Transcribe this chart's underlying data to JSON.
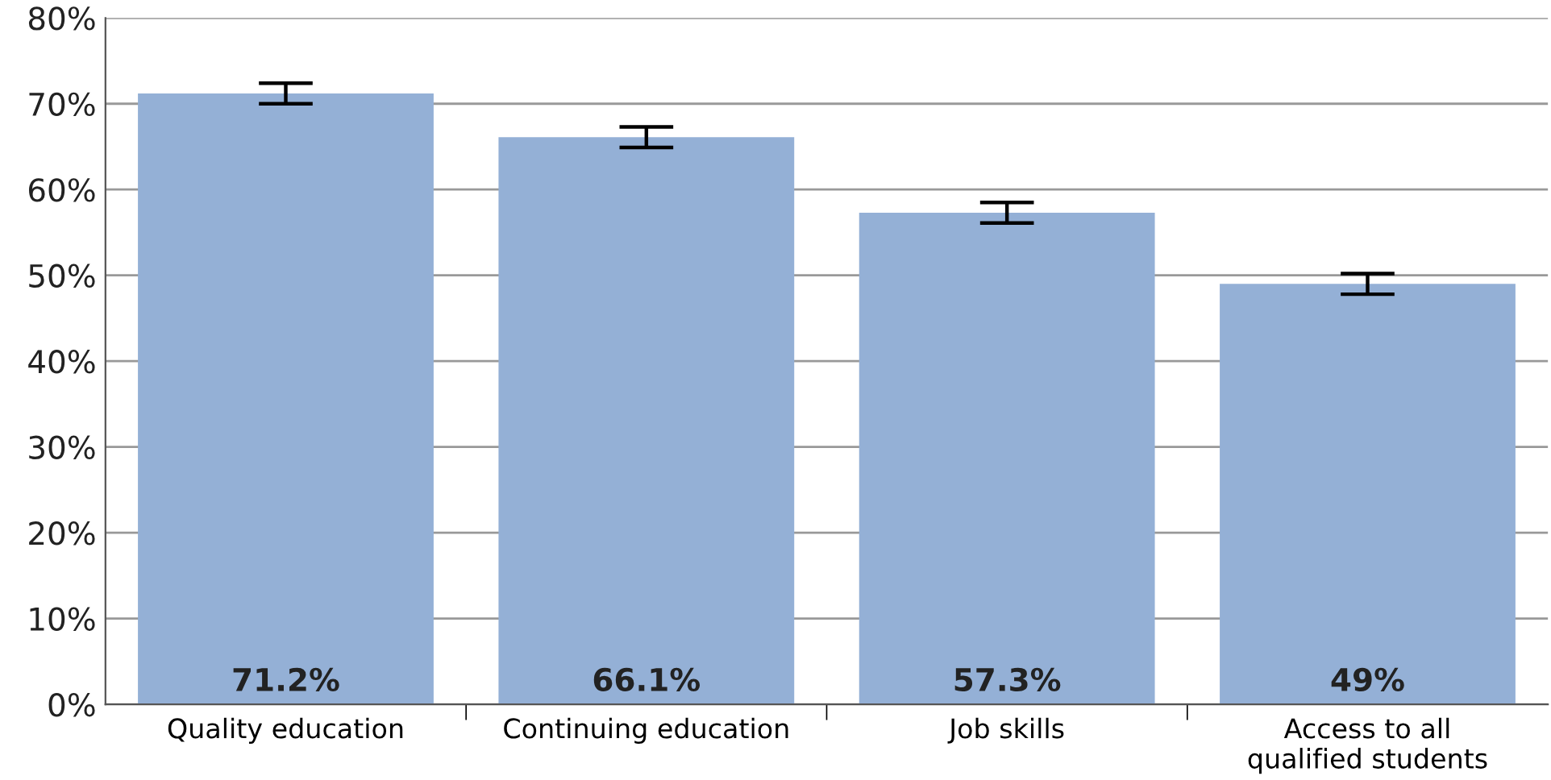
{
  "chart_data": {
    "type": "bar",
    "categories": [
      "Quality education",
      "Continuing education",
      "Job skills",
      "Access to all\nqualified students"
    ],
    "values": [
      71.2,
      66.1,
      57.3,
      49
    ],
    "errors": [
      1.2,
      1.2,
      1.2,
      1.2
    ],
    "value_labels": [
      "71.2%",
      "66.1%",
      "57.3%",
      "49%"
    ],
    "color": "#94b0d6",
    "ylim": [
      0,
      80
    ],
    "yticks": [
      {
        "value": 0,
        "label": "0%"
      },
      {
        "value": 10,
        "label": "10%"
      },
      {
        "value": 20,
        "label": "20%"
      },
      {
        "value": 30,
        "label": "30%"
      },
      {
        "value": 40,
        "label": "40%"
      },
      {
        "value": 50,
        "label": "50%"
      },
      {
        "value": 60,
        "label": "60%"
      },
      {
        "value": 70,
        "label": "70%"
      },
      {
        "value": 80,
        "label": "80%"
      }
    ],
    "grid": "y",
    "legend": false
  }
}
